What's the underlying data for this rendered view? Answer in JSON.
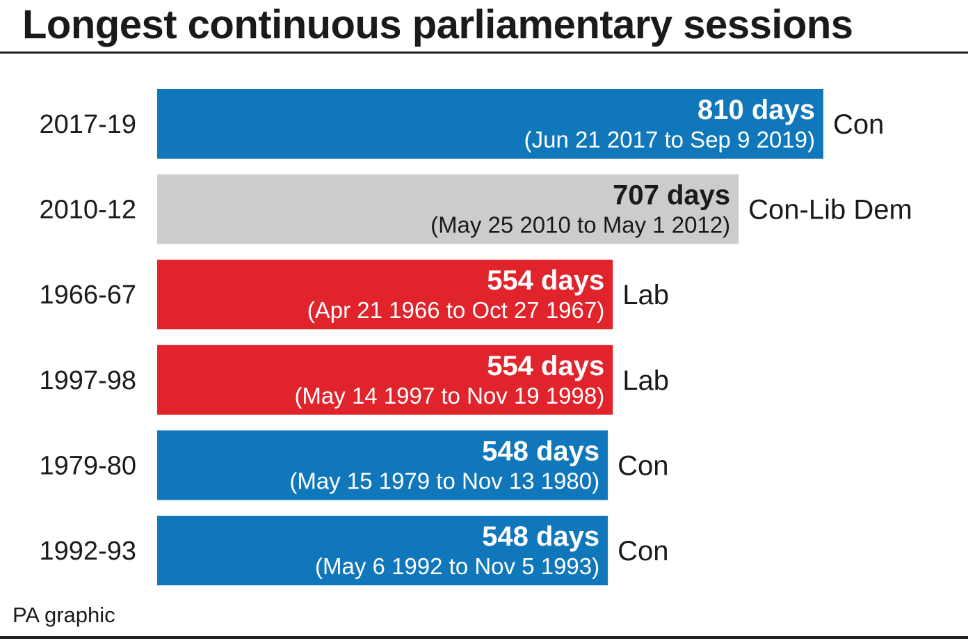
{
  "title": "Longest continuous parliamentary sessions",
  "source": "PA graphic",
  "colors": {
    "Con": "#1177bb",
    "Con-Lib Dem": "#cccccc",
    "Lab": "#e1232b",
    "text_dark": "#1a1a1a",
    "text_light": "#ffffff"
  },
  "chart_data": {
    "type": "bar",
    "orientation": "horizontal",
    "title": "Longest continuous parliamentary sessions",
    "xlabel": "",
    "ylabel": "",
    "xlim": [
      0,
      810
    ],
    "grid": false,
    "categories": [
      "2017-19",
      "2010-12",
      "1966-67",
      "1997-98",
      "1979-80",
      "1992-93"
    ],
    "values": [
      810,
      707,
      554,
      554,
      548,
      548
    ],
    "value_labels": [
      "810 days",
      "707 days",
      "554 days",
      "554 days",
      "548 days",
      "548 days"
    ],
    "date_ranges": [
      "(Jun 21 2017 to Sep 9 2019)",
      "(May 25 2010 to May 1 2012)",
      "(Apr 21 1966 to Oct 27 1967)",
      "(May 14 1997 to Nov 19 1998)",
      "(May 15 1979 to Nov 13 1980)",
      "(May 6 1992 to Nov 5 1993)"
    ],
    "parties": [
      "Con",
      "Con-Lib Dem",
      "Lab",
      "Lab",
      "Con",
      "Con"
    ]
  }
}
